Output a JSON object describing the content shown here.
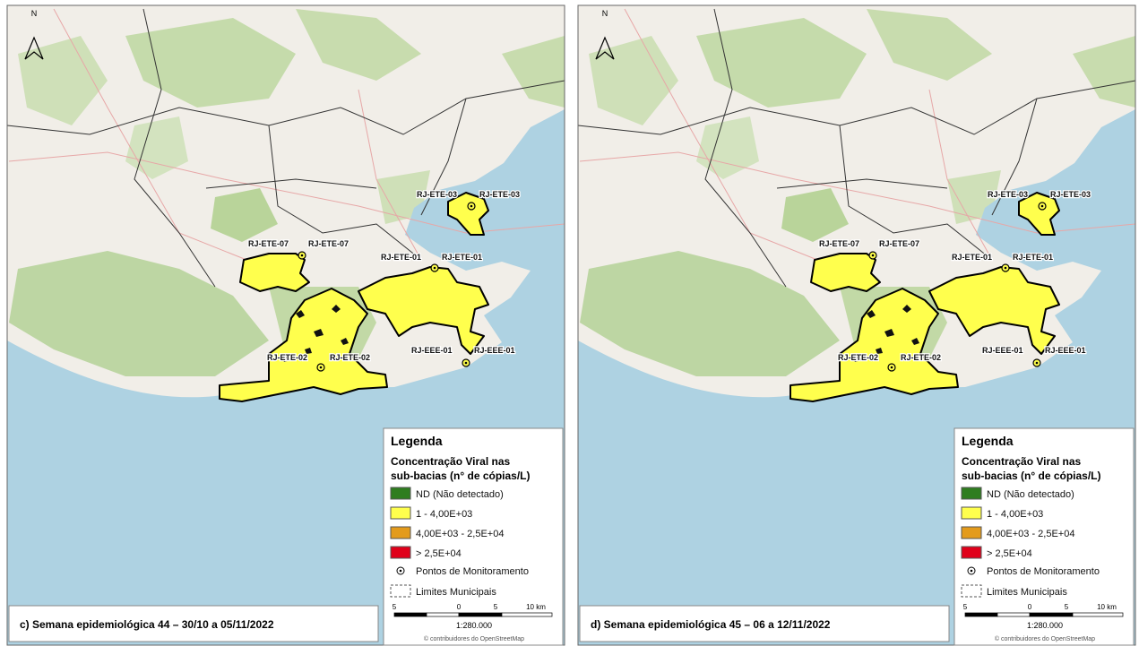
{
  "panels": [
    {
      "caption": "c) Semana epidemiológica 44 – 30/10 a 05/11/2022"
    },
    {
      "caption": "d) Semana epidemiológica 45 – 06 a 12/11/2022"
    }
  ],
  "north": "N",
  "stations": [
    "RJ-ETE-03",
    "RJ-ETE-07",
    "RJ-ETE-01",
    "RJ-ETE-02",
    "RJ-EEE-01"
  ],
  "legend": {
    "title": "Legenda",
    "subtitle": [
      "Concentração Viral nas",
      "sub-bacias (n° de cópias/L)"
    ],
    "classes": [
      {
        "label": "ND (Não detectado)",
        "color": "#2f7d1f"
      },
      {
        "label": "1 - 4,00E+03",
        "color": "#ffff4d"
      },
      {
        "label": "4,00E+03 - 2,5E+04",
        "color": "#e39b1c"
      },
      {
        "label": "> 2,5E+04",
        "color": "#e0001a"
      }
    ],
    "points": "Pontos de Monitoramento",
    "limits": "Limites Municipais",
    "scale_ticks": [
      "5",
      "0",
      "5",
      "10 km"
    ],
    "scale": "1:280.000",
    "credit": "© contribuidores do OpenStreetMap"
  }
}
